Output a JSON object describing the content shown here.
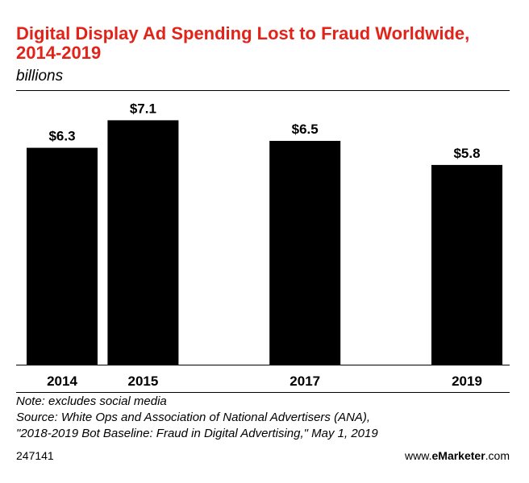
{
  "chart_data": {
    "type": "bar",
    "title": "Digital Display Ad Spending Lost to Fraud Worldwide, 2014-2019",
    "subtitle": "billions",
    "categories": [
      "2014",
      "2015",
      "2017",
      "2019"
    ],
    "values": [
      6.3,
      7.1,
      6.5,
      5.8
    ],
    "value_labels": [
      "$6.3",
      "$7.1",
      "$6.5",
      "$5.8"
    ],
    "xlabel": "",
    "ylabel": "",
    "ylim": [
      0,
      7.95
    ],
    "grid": false,
    "bar_color": "#000000"
  },
  "notes": {
    "note": "Note: excludes social media",
    "source_line1": "Source: White Ops and Association of National Advertisers (ANA),",
    "source_line2": "\"2018-2019 Bot Baseline: Fraud in Digital Advertising,\" May 1, 2019"
  },
  "footer": {
    "chart_id": "247141",
    "brand_prefix": "www.",
    "brand_bold": "eMarketer",
    "brand_suffix": ".com"
  },
  "colors": {
    "title": "#e2231a",
    "text": "#000000"
  }
}
